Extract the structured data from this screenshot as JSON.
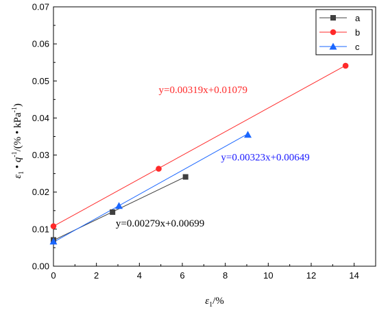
{
  "chart_data": {
    "type": "scatter",
    "xlabel": {
      "symbol": "ε",
      "sub": "1",
      "unit": "/%"
    },
    "ylabel": {
      "symbol": "ε",
      "sub": "1",
      "dot1": " • ",
      "qsym": "q",
      "qsup": "-1",
      "mid": "/(% • kPa",
      "kpasup": "-1",
      "end": ")"
    },
    "xlim": [
      0,
      15
    ],
    "ylim": [
      0,
      0.07
    ],
    "xticks": [
      0,
      2,
      4,
      6,
      8,
      10,
      12,
      14
    ],
    "yticks": [
      0.0,
      0.01,
      0.02,
      0.03,
      0.04,
      0.05,
      0.06,
      0.07
    ],
    "xtick_labels": [
      "0",
      "2",
      "4",
      "6",
      "8",
      "10",
      "12",
      "14"
    ],
    "ytick_labels": [
      "0.00",
      "0.01",
      "0.02",
      "0.03",
      "0.04",
      "0.05",
      "0.06",
      "0.07"
    ],
    "grid": false,
    "legend_position": "top-right",
    "series": [
      {
        "name": "a",
        "marker": "square",
        "color": "#404040",
        "x": [
          0,
          2.75,
          6.15
        ],
        "y": [
          0.0071,
          0.0146,
          0.0241
        ],
        "fit": {
          "slope": 0.00279,
          "intercept": 0.00699,
          "x_range": [
            0,
            6.15
          ]
        },
        "equation": "y=0.00279x+0.00699"
      },
      {
        "name": "b",
        "marker": "circle",
        "color": "#ff2a2a",
        "x": [
          0,
          4.9,
          13.6
        ],
        "y": [
          0.0108,
          0.0263,
          0.0541
        ],
        "fit": {
          "slope": 0.00319,
          "intercept": 0.01079,
          "x_range": [
            0,
            13.6
          ]
        },
        "equation": "y=0.00319x+0.01079"
      },
      {
        "name": "c",
        "marker": "triangle",
        "color": "#1a66ff",
        "x": [
          0,
          3.05,
          9.05
        ],
        "y": [
          0.0067,
          0.0163,
          0.0355
        ],
        "fit": {
          "slope": 0.00323,
          "intercept": 0.00649,
          "x_range": [
            0,
            9.05
          ]
        },
        "equation": "y=0.00323x+0.00649"
      }
    ],
    "annotations": [
      {
        "series": "b",
        "text": "y=0.00319x+0.01079",
        "color": "#ff2a2a",
        "at": [
          4.9,
          0.0467
        ]
      },
      {
        "series": "c",
        "text": "y=0.00323x+0.00649",
        "color": "#1a1aff",
        "at": [
          7.8,
          0.0285
        ]
      },
      {
        "series": "a",
        "text": "y=0.00279x+0.00699",
        "color": "#000000",
        "at": [
          2.9,
          0.0107
        ]
      }
    ]
  }
}
